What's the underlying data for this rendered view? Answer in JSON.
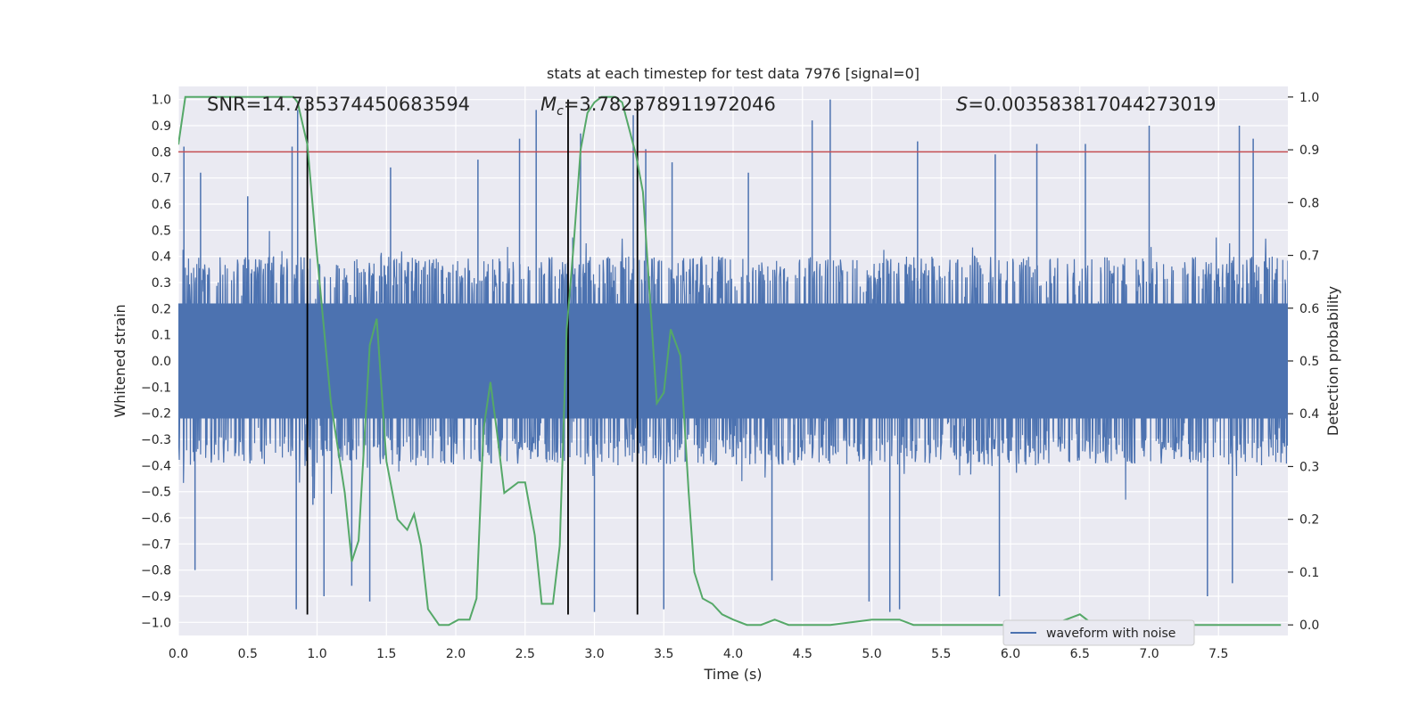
{
  "chart_data": {
    "type": "line",
    "title": "stats at each timestep for test data 7976 [signal=0]",
    "xlabel": "Time (s)",
    "ylabel_left": "Whitened strain",
    "ylabel_right": "Detection probability",
    "xlim": [
      0,
      8.0
    ],
    "ylim_left": [
      -1.05,
      1.05
    ],
    "ylim_right": [
      -0.02,
      1.02
    ],
    "x_ticks": [
      0.0,
      0.5,
      1.0,
      1.5,
      2.0,
      2.5,
      3.0,
      3.5,
      4.0,
      4.5,
      5.0,
      5.5,
      6.0,
      6.5,
      7.0,
      7.5
    ],
    "x_tick_labels": [
      "0.0",
      "0.5",
      "1.0",
      "1.5",
      "2.0",
      "2.5",
      "3.0",
      "3.5",
      "4.0",
      "4.5",
      "5.0",
      "5.5",
      "6.0",
      "6.5",
      "7.0",
      "7.5"
    ],
    "y_left_ticks": [
      1.0,
      0.9,
      0.8,
      0.7,
      0.6,
      0.5,
      0.4,
      0.3,
      0.2,
      0.1,
      0.0,
      -0.1,
      -0.2,
      -0.3,
      -0.4,
      -0.5,
      -0.6,
      -0.7,
      -0.8,
      -0.9,
      -1.0
    ],
    "y_left_tick_labels": [
      "1.0",
      "0.9",
      "0.8",
      "0.7",
      "0.6",
      "0.5",
      "0.4",
      "0.3",
      "0.2",
      "0.1",
      "0.0",
      "−0.1",
      "−0.2",
      "−0.3",
      "−0.4",
      "−0.5",
      "−0.6",
      "−0.7",
      "−0.8",
      "−0.9",
      "−1.0"
    ],
    "y_right_ticks": [
      1.0,
      0.9,
      0.8,
      0.7,
      0.6,
      0.5,
      0.4,
      0.3,
      0.2,
      0.1,
      0.0
    ],
    "y_right_tick_labels": [
      "1.0",
      "0.9",
      "0.8",
      "0.7",
      "0.6",
      "0.5",
      "0.4",
      "0.3",
      "0.2",
      "0.1",
      "0.0"
    ],
    "annotations": {
      "snr": "SNR=14.735374450683594",
      "mc_symbol": "M",
      "mc_sub": "c",
      "mc_value": "=3.782378911972046",
      "s_symbol": "S",
      "s_value": "=0.003583817044273019"
    },
    "threshold": {
      "value": 0.8,
      "axis": "left",
      "color": "#c44e52"
    },
    "vertical_lines": [
      0.93,
      2.81,
      3.31
    ],
    "legend": {
      "label": "waveform with noise",
      "placement": "lower-right"
    },
    "colors": {
      "waveform": "#4c72b0",
      "probability": "#55a868",
      "vlines": "#000000",
      "background": "#eaeaf2"
    },
    "waveform": {
      "description": "noisy whitened strain, dense band roughly within -0.4..0.4 with spikes",
      "duration": 8.0,
      "band": 0.4,
      "spikes": [
        {
          "x": 0.04,
          "y": 0.82
        },
        {
          "x": 0.16,
          "y": 0.72
        },
        {
          "x": 0.12,
          "y": -0.8
        },
        {
          "x": 0.5,
          "y": 0.63
        },
        {
          "x": 0.82,
          "y": 0.82
        },
        {
          "x": 0.86,
          "y": 0.96
        },
        {
          "x": 0.85,
          "y": -0.95
        },
        {
          "x": 0.97,
          "y": -0.55
        },
        {
          "x": 1.05,
          "y": -0.9
        },
        {
          "x": 1.25,
          "y": -0.86
        },
        {
          "x": 1.38,
          "y": -0.92
        },
        {
          "x": 1.53,
          "y": 0.74
        },
        {
          "x": 2.16,
          "y": 0.77
        },
        {
          "x": 2.46,
          "y": 0.85
        },
        {
          "x": 2.58,
          "y": 0.96
        },
        {
          "x": 2.9,
          "y": 0.87
        },
        {
          "x": 3.0,
          "y": -0.96
        },
        {
          "x": 3.28,
          "y": 0.94
        },
        {
          "x": 3.37,
          "y": 0.81
        },
        {
          "x": 3.56,
          "y": 0.76
        },
        {
          "x": 3.5,
          "y": -0.95
        },
        {
          "x": 4.11,
          "y": 0.72
        },
        {
          "x": 4.28,
          "y": -0.84
        },
        {
          "x": 4.57,
          "y": 0.92
        },
        {
          "x": 4.7,
          "y": 1.0
        },
        {
          "x": 4.98,
          "y": -0.92
        },
        {
          "x": 5.13,
          "y": -0.96
        },
        {
          "x": 5.2,
          "y": -0.95
        },
        {
          "x": 5.33,
          "y": 0.84
        },
        {
          "x": 5.89,
          "y": 0.79
        },
        {
          "x": 5.92,
          "y": -0.9
        },
        {
          "x": 6.19,
          "y": 0.83
        },
        {
          "x": 6.54,
          "y": 0.83
        },
        {
          "x": 7.0,
          "y": 0.9
        },
        {
          "x": 7.6,
          "y": -0.85
        },
        {
          "x": 7.65,
          "y": 0.9
        },
        {
          "x": 7.75,
          "y": 0.85
        },
        {
          "x": 7.42,
          "y": -0.9
        }
      ]
    },
    "probability": {
      "x": [
        0.0,
        0.05,
        0.15,
        0.3,
        0.5,
        0.7,
        0.83,
        0.86,
        0.93,
        1.0,
        1.1,
        1.2,
        1.25,
        1.3,
        1.38,
        1.43,
        1.5,
        1.58,
        1.65,
        1.7,
        1.75,
        1.8,
        1.88,
        1.95,
        2.02,
        2.1,
        2.15,
        2.2,
        2.25,
        2.3,
        2.35,
        2.4,
        2.45,
        2.5,
        2.57,
        2.62,
        2.7,
        2.75,
        2.8,
        2.85,
        2.9,
        2.95,
        3.0,
        3.05,
        3.1,
        3.15,
        3.2,
        3.25,
        3.3,
        3.35,
        3.4,
        3.45,
        3.5,
        3.55,
        3.62,
        3.68,
        3.72,
        3.78,
        3.85,
        3.92,
        4.0,
        4.1,
        4.2,
        4.3,
        4.4,
        4.5,
        4.7,
        5.0,
        5.1,
        5.2,
        5.3,
        5.5,
        5.8,
        6.0,
        6.3,
        6.4,
        6.5,
        6.6,
        6.8,
        7.0,
        7.2,
        7.4,
        7.6,
        7.8,
        7.95
      ],
      "y": [
        0.91,
        1.0,
        1.0,
        1.0,
        1.0,
        1.0,
        1.0,
        0.99,
        0.91,
        0.7,
        0.42,
        0.25,
        0.12,
        0.16,
        0.53,
        0.58,
        0.31,
        0.2,
        0.18,
        0.21,
        0.15,
        0.03,
        0.0,
        0.0,
        0.01,
        0.01,
        0.05,
        0.37,
        0.46,
        0.36,
        0.25,
        0.26,
        0.27,
        0.27,
        0.17,
        0.04,
        0.04,
        0.15,
        0.56,
        0.72,
        0.9,
        0.97,
        0.99,
        1.0,
        1.0,
        1.0,
        0.99,
        0.94,
        0.89,
        0.82,
        0.62,
        0.42,
        0.44,
        0.56,
        0.51,
        0.25,
        0.1,
        0.05,
        0.04,
        0.02,
        0.01,
        0.0,
        0.0,
        0.01,
        0.0,
        0.0,
        0.0,
        0.01,
        0.01,
        0.01,
        0.0,
        0.0,
        0.0,
        0.0,
        0.0,
        0.01,
        0.02,
        0.0,
        0.0,
        0.0,
        0.0,
        0.0,
        0.0,
        0.0,
        0.0
      ]
    }
  }
}
